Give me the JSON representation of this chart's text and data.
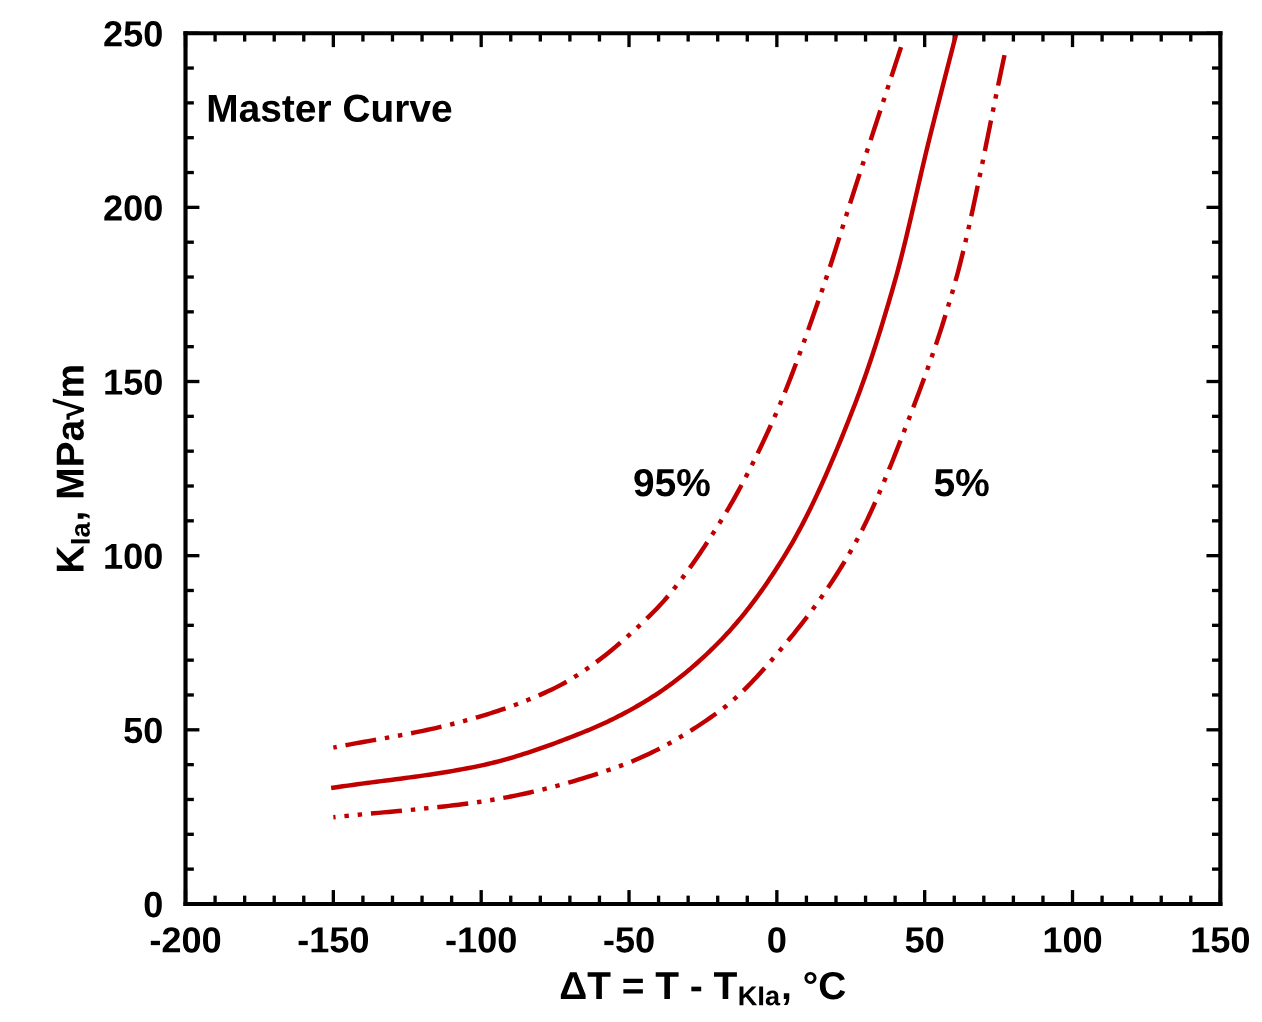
{
  "chart_data": {
    "type": "line",
    "xlabel": "ΔT = T - T$_{KIa}$, °C",
    "ylabel": "K$_{Ia}$, MPa√m",
    "annotations": [
      "Master Curve",
      "95%",
      "5%"
    ],
    "xlim": [
      -200,
      150
    ],
    "xticks": [
      -200,
      -150,
      -100,
      -50,
      0,
      50,
      100,
      150
    ],
    "ylim": [
      0,
      250
    ],
    "yticks": [
      0,
      50,
      100,
      150,
      200,
      250
    ],
    "marker": "none",
    "series": [
      {
        "color": "#c00000",
        "line_style": "solid",
        "x": [
          -150,
          -101.4,
          -64.9,
          -42,
          -19.2,
          3.7,
          26.5,
          40.2,
          51.6,
          60.7
        ],
        "values": [
          33.4,
          39.5,
          49.5,
          59.5,
          75.5,
          101.5,
          143.7,
          179.7,
          219.7,
          250
        ]
      },
      {
        "color": "#c00000",
        "line_style": "dashed",
        "x": [
          -150,
          -110.5,
          -76.3,
          -42,
          -19.2,
          -0.9,
          15.1,
          26.5,
          42
        ],
        "values": [
          44.9,
          51.5,
          61.5,
          83.6,
          109.6,
          139.6,
          175.7,
          205.7,
          246
        ]
      },
      {
        "color": "#c00000",
        "line_style": "dashed",
        "x": [
          -150,
          -99.1,
          -53.4,
          -19.2,
          3.7,
          26.5,
          44.8,
          60.7,
          77
        ],
        "values": [
          24.9,
          29.5,
          39.5,
          55.5,
          75.5,
          103.6,
          139.6,
          179.7,
          243.7
        ]
      }
    ]
  }
}
